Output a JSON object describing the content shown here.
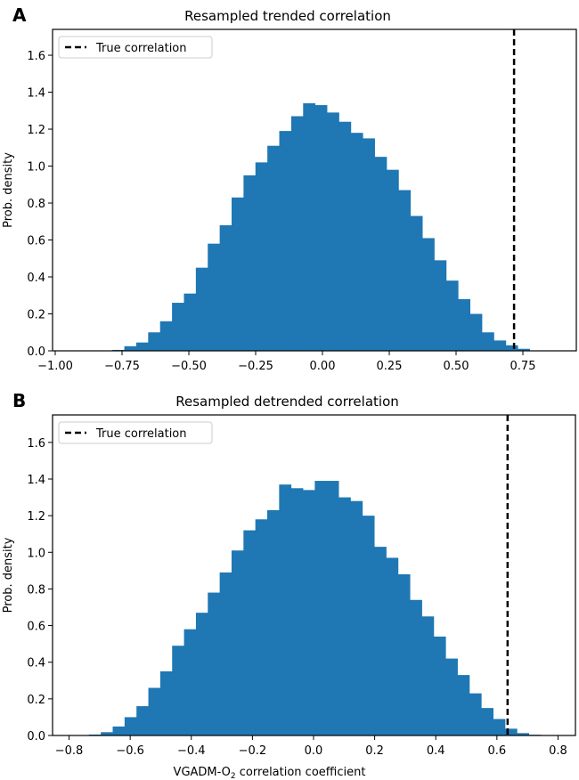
{
  "chart_data": [
    {
      "type": "bar",
      "panel_label": "A",
      "title": "Resampled trended correlation",
      "xlabel": "",
      "ylabel": "Prob. density",
      "xlim": [
        -1.01,
        0.95
      ],
      "ylim": [
        0,
        1.74
      ],
      "xticks": [
        -1.0,
        -0.75,
        -0.5,
        -0.25,
        0.0,
        0.25,
        0.5,
        0.75
      ],
      "xtick_labels": [
        "−1.00",
        "−0.75",
        "−0.50",
        "−0.25",
        "0.00",
        "0.25",
        "0.50",
        "0.75"
      ],
      "yticks": [
        0.0,
        0.2,
        0.4,
        0.6,
        0.8,
        1.0,
        1.2,
        1.4,
        1.6
      ],
      "ytick_labels": [
        "0.0",
        "0.2",
        "0.4",
        "0.6",
        "0.8",
        "1.0",
        "1.2",
        "1.4",
        "1.6"
      ],
      "bin_start": -0.786,
      "bin_width": 0.0446,
      "values": [
        0.005,
        0.025,
        0.045,
        0.1,
        0.16,
        0.26,
        0.31,
        0.45,
        0.58,
        0.68,
        0.83,
        0.95,
        1.02,
        1.11,
        1.19,
        1.27,
        1.34,
        1.33,
        1.29,
        1.24,
        1.18,
        1.15,
        1.05,
        0.98,
        0.87,
        0.73,
        0.61,
        0.49,
        0.38,
        0.28,
        0.2,
        0.1,
        0.056,
        0.03,
        0.011
      ],
      "true_correlation": 0.717,
      "legend": {
        "label": "True correlation",
        "placement": "top-left"
      },
      "bar_color": "#1f77b4",
      "line_color": "#000000"
    },
    {
      "type": "bar",
      "panel_label": "B",
      "title": "Resampled detrended correlation",
      "xlabel": "VGADM-O₂ correlation coefficient",
      "xlabel_parts": {
        "main": "VGADM-O",
        "sub": "2",
        "tail": " correlation coefficient"
      },
      "ylabel": "Prob. density",
      "xlim": [
        -0.854,
        0.857
      ],
      "ylim": [
        0,
        1.75
      ],
      "xticks": [
        -0.8,
        -0.6,
        -0.4,
        -0.2,
        0.0,
        0.2,
        0.4,
        0.6,
        0.8
      ],
      "xtick_labels": [
        "−0.8",
        "−0.6",
        "−0.4",
        "−0.2",
        "0.0",
        "0.2",
        "0.4",
        "0.6",
        "0.8"
      ],
      "yticks": [
        0.0,
        0.2,
        0.4,
        0.6,
        0.8,
        1.0,
        1.2,
        1.4,
        1.6
      ],
      "ytick_labels": [
        "0.0",
        "0.2",
        "0.4",
        "0.6",
        "0.8",
        "1.0",
        "1.2",
        "1.4",
        "1.6"
      ],
      "bin_start": -0.735,
      "bin_width": 0.0389,
      "values": [
        0.005,
        0.018,
        0.049,
        0.1,
        0.16,
        0.26,
        0.35,
        0.49,
        0.58,
        0.67,
        0.78,
        0.89,
        1.01,
        1.12,
        1.18,
        1.23,
        1.37,
        1.35,
        1.34,
        1.39,
        1.39,
        1.3,
        1.28,
        1.2,
        1.03,
        0.97,
        0.88,
        0.74,
        0.65,
        0.54,
        0.42,
        0.33,
        0.23,
        0.15,
        0.09,
        0.037,
        0.013,
        0.004
      ],
      "true_correlation": 0.635,
      "legend": {
        "label": "True correlation",
        "placement": "top-left"
      },
      "bar_color": "#1f77b4",
      "line_color": "#000000"
    }
  ]
}
